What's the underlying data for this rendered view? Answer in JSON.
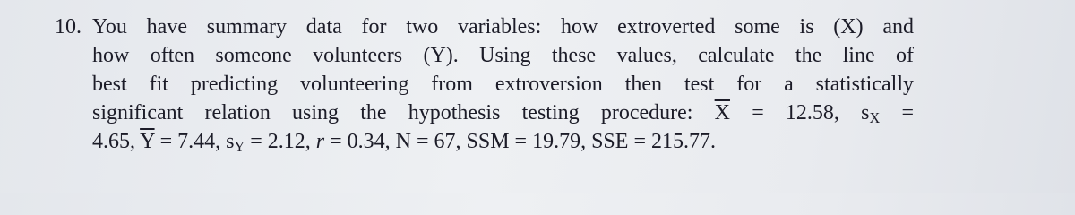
{
  "question": {
    "number": "10.",
    "lines": [
      [
        "You have summary data for two variables: how extroverted some is (X) and"
      ],
      [
        "how often someone volunteers (Y). Using these values, calculate the line of"
      ],
      [
        "best fit predicting volunteering from extroversion then test for a statistically"
      ],
      [
        "significant relation using the hypothesis testing procedure: ",
        {
          "text": "X",
          "style": "overline"
        },
        " = 12.58, s",
        {
          "text": "X",
          "style": "sub"
        },
        " ="
      ],
      [
        "4.65, ",
        {
          "text": "Y",
          "style": "overline"
        },
        " = 7.44, s",
        {
          "text": "Y",
          "style": "sub"
        },
        " = 2.12, ",
        {
          "text": "r",
          "style": "italic"
        },
        " = 0.34, N = 67, SSM = 19.79, SSE = 215.77."
      ]
    ]
  }
}
